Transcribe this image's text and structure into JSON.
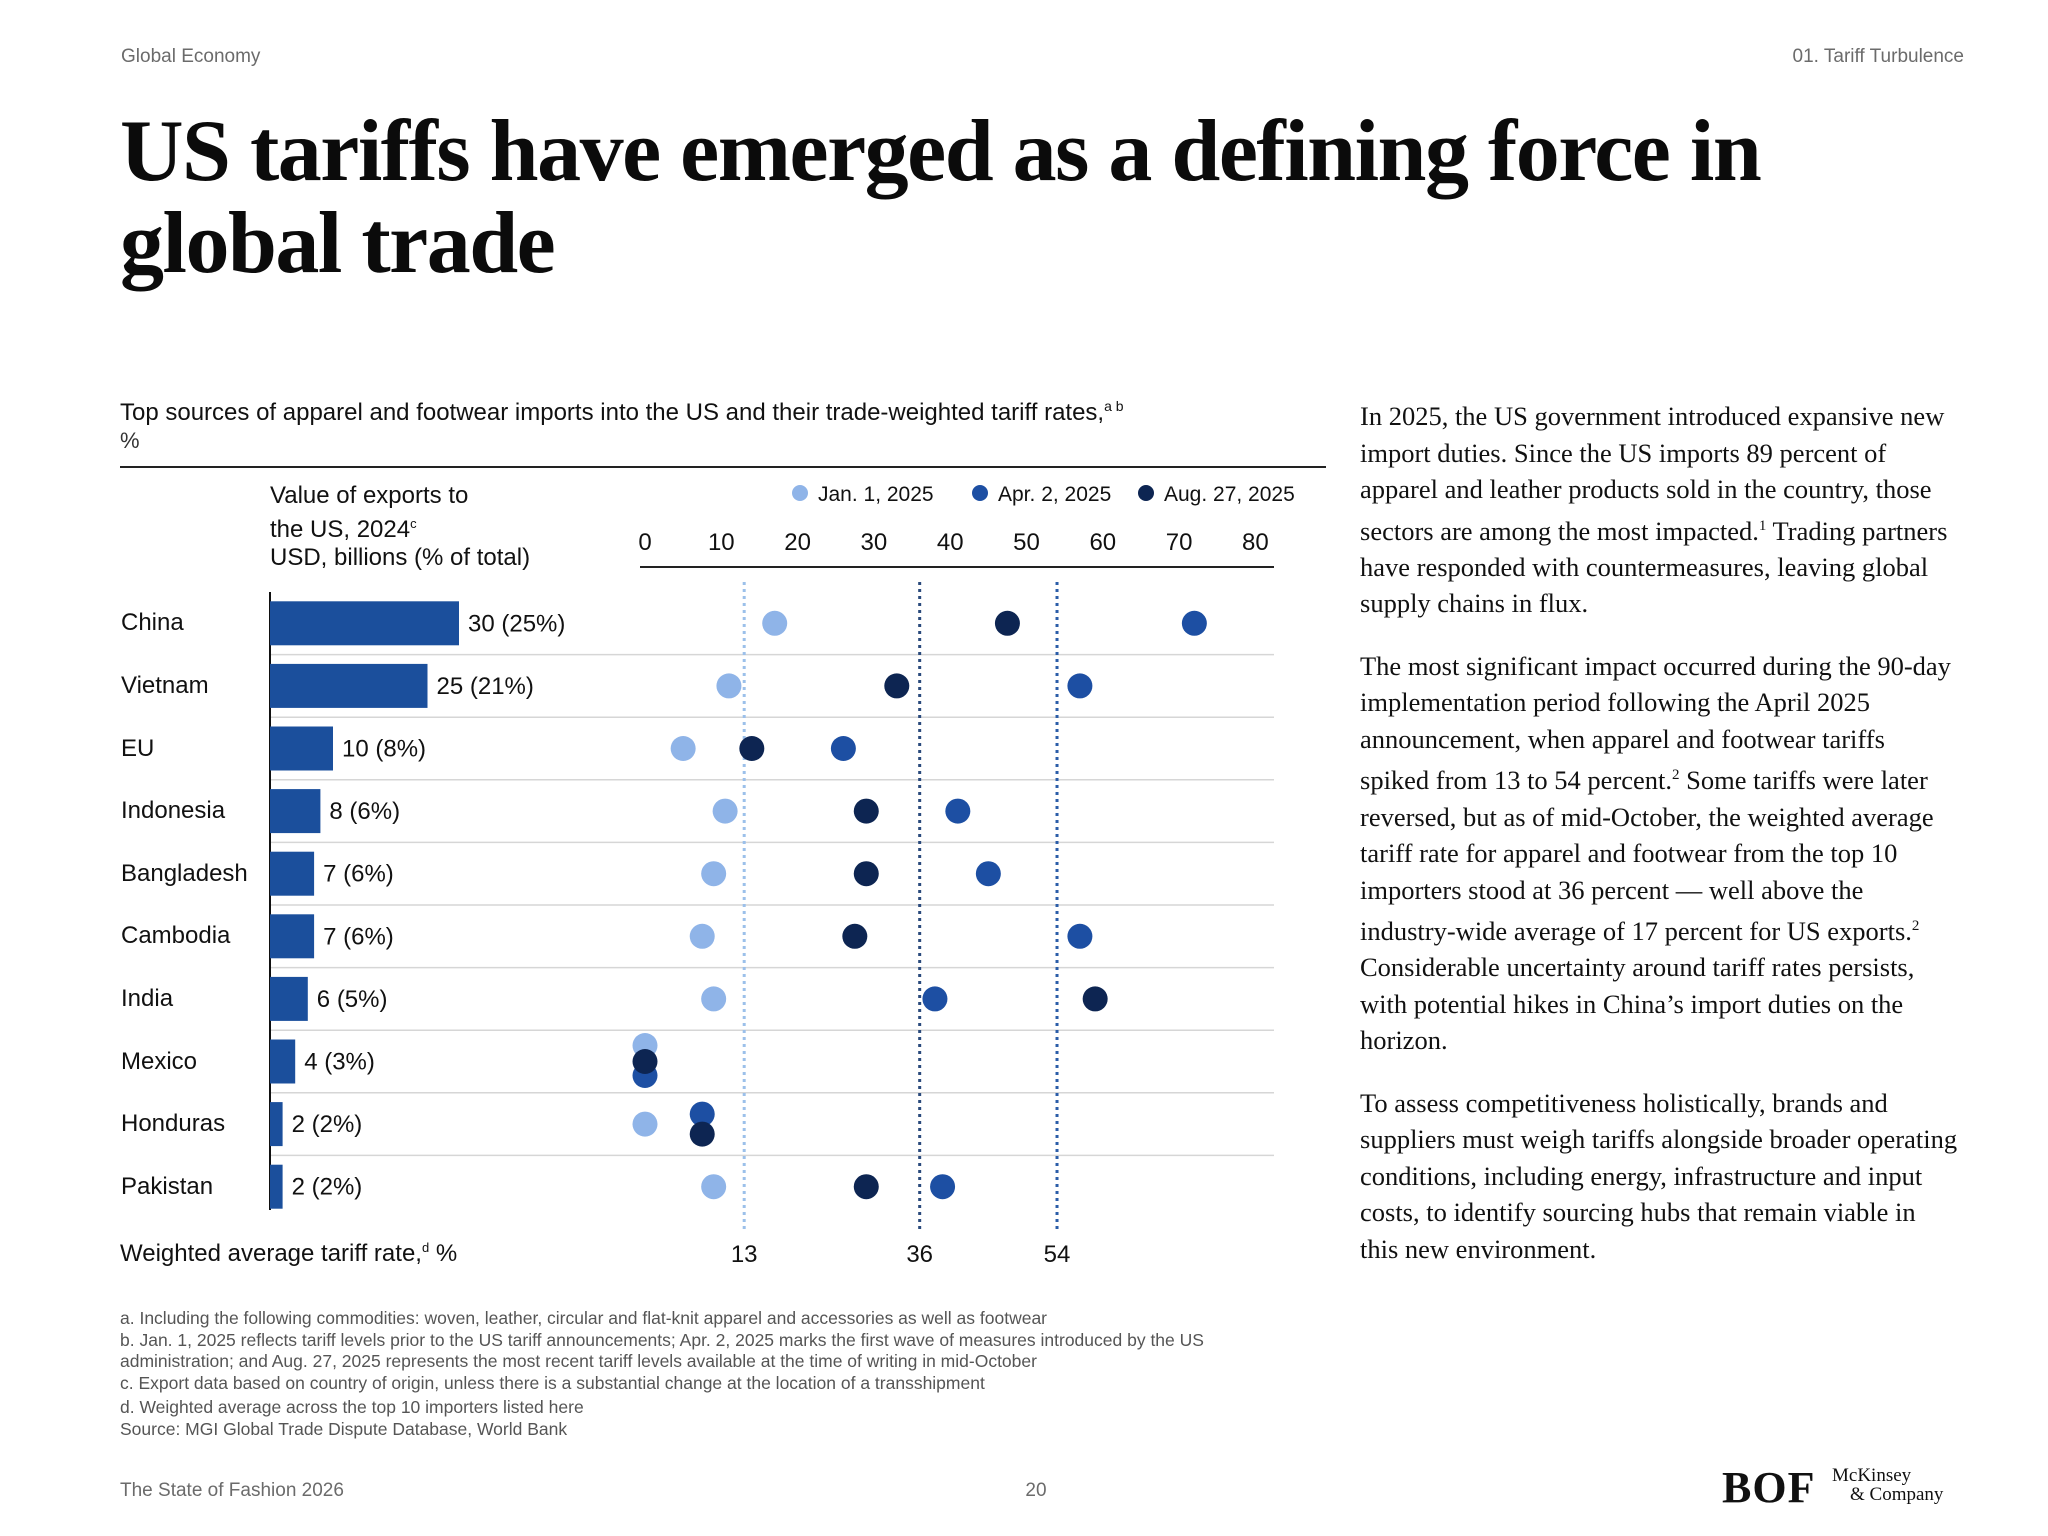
{
  "header": {
    "left": "Global Economy",
    "right": "01. Tariff Turbulence"
  },
  "title": "US tariffs have emerged as a defining force in global trade",
  "chart": {
    "title": "Top sources of apparel and footwear imports into the US and their trade-weighted tariff rates,",
    "title_sup": "a b",
    "unit": "%",
    "value_header_1": "Value of exports to",
    "value_header_2": "the US, 2024",
    "value_header_2_sup": "c",
    "value_header_3": "USD, billions (% of total)",
    "weighted_label": "Weighted average tariff rate,",
    "weighted_label_sup": "d",
    "weighted_label_unit": "%"
  },
  "chart_data": {
    "type": "scatter",
    "categories": [
      "China",
      "Vietnam",
      "EU",
      "Indonesia",
      "Bangladesh",
      "Cambodia",
      "India",
      "Mexico",
      "Honduras",
      "Pakistan"
    ],
    "export_values": [
      30,
      25,
      10,
      8,
      7,
      7,
      6,
      4,
      2,
      2
    ],
    "export_labels": [
      "30 (25%)",
      "25 (21%)",
      "10 (8%)",
      "8 (6%)",
      "7 (6%)",
      "7 (6%)",
      "6 (5%)",
      "4 (3%)",
      "2 (2%)",
      "2 (2%)"
    ],
    "x_ticks": [
      0,
      10,
      20,
      30,
      40,
      50,
      60,
      70,
      80
    ],
    "xlim": [
      0,
      80
    ],
    "series": [
      {
        "name": "Jan. 1, 2025",
        "color": "#8fb4e8",
        "values": [
          17,
          11,
          5,
          10.5,
          9,
          7.5,
          9,
          0,
          0,
          9
        ]
      },
      {
        "name": "Apr. 2, 2025",
        "color": "#1d4fa3",
        "values": [
          72,
          57,
          26,
          41,
          45,
          57,
          38,
          0,
          7.5,
          39
        ]
      },
      {
        "name": "Aug. 27, 2025",
        "color": "#0d2552",
        "values": [
          47.5,
          33,
          14,
          29,
          29,
          27.5,
          59,
          0,
          7.5,
          29
        ]
      }
    ],
    "averages": [
      {
        "value": 13,
        "label": "13",
        "color": "#9cc0ea"
      },
      {
        "value": 36,
        "label": "36",
        "color": "#2a4a7c"
      },
      {
        "value": 54,
        "label": "54",
        "color": "#2b5da8"
      }
    ],
    "legend_position": "top",
    "bar_color": "#1b4f9c"
  },
  "footnotes": [
    "a. Including the following commodities: woven, leather, circular and flat-knit apparel and accessories as well as footwear",
    "b. Jan. 1, 2025 reflects tariff levels prior to the US tariff announcements; Apr. 2, 2025 marks the first wave of measures introduced by the US",
    "administration; and Aug. 27, 2025 represents the most recent tariff levels available at the time of writing in mid-October",
    "c. Export data based on country of origin, unless there is a substantial change at the location of a transshipment",
    "d. Weighted average across the top 10 importers listed here",
    "Source: MGI Global Trade Dispute Database, World Bank"
  ],
  "body": {
    "p1": "In 2025, the US government introduced expansive new import duties. Since the US imports 89 percent of apparel and leather products sold in the country, those sectors are among the most impacted.",
    "p1_sup": "1",
    "p1b": "Trading partners have responded with countermeasures, leaving global supply chains in flux.",
    "p2a": "The most significant impact occurred during the 90-day implementation period following the April 2025 announcement, when apparel and footwear tariffs spiked from 13 to 54 percent.",
    "p2_sup1": "2",
    "p2b": "Some tariffs were later reversed, but as of mid-October, the weighted average tariff rate for apparel and footwear from the top 10 importers stood at 36 percent — well above the industry-wide average of 17 percent for US exports.",
    "p2_sup2": "2",
    "p2c": "Considerable uncertainty around tariff rates persists, with potential hikes in China’s import duties on the horizon.",
    "p3": "To assess competitiveness holistically, brands and suppliers must weigh tariffs alongside broader operating conditions, including energy, infrastructure and input costs, to identify sourcing hubs that remain viable in this new environment."
  },
  "footer": {
    "left": "The State of Fashion 2026",
    "page": "20",
    "logo_bof": "BOF",
    "logo_mck_1": "McKinsey",
    "logo_mck_2": "& Company"
  }
}
